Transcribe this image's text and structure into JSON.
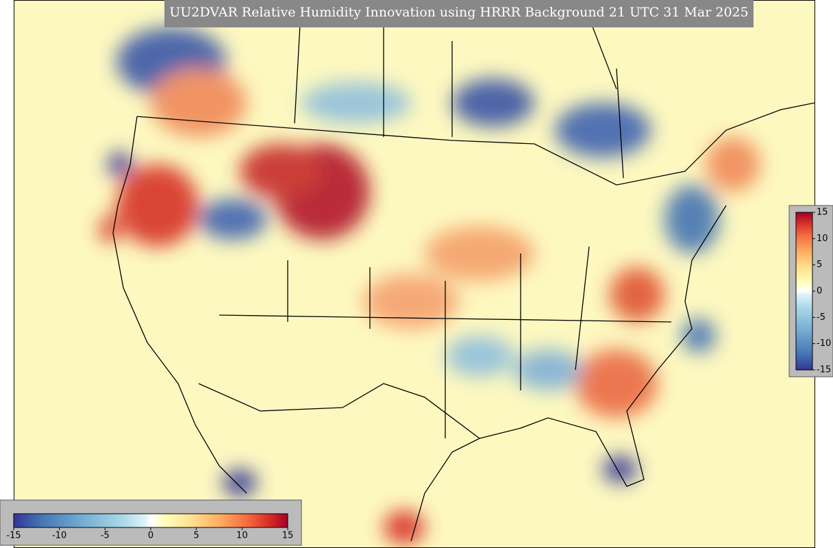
{
  "title": "UU2DVAR Relative Humidity Innovation using HRRR Background 21 UTC 31 Mar 2025",
  "colorbar_vertical": {
    "limits": [
      -15,
      15
    ],
    "ticks": [
      15,
      10,
      5,
      0,
      -5,
      -10,
      -15
    ]
  },
  "colorbar_horizontal": {
    "limits": [
      -15,
      15
    ],
    "ticks": [
      -15,
      -10,
      -5,
      0,
      5,
      10,
      15
    ]
  }
}
